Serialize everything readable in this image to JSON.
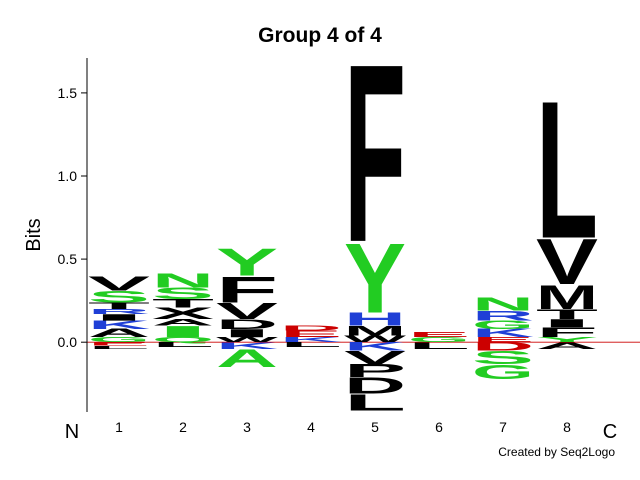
{
  "chart_data": {
    "type": "logo",
    "title": "Group 4 of 4",
    "y_label": "Bits",
    "n_label": "N",
    "c_label": "C",
    "credit": "Created by Seq2Logo",
    "ylim": [
      -0.42,
      1.71
    ],
    "yticks": [
      {
        "value": 0,
        "label": "0.0"
      },
      {
        "value": 0.5,
        "label": "0.5"
      },
      {
        "value": 1,
        "label": "1.0"
      },
      {
        "value": 1.5,
        "label": "1.5"
      }
    ],
    "categories": [
      "1",
      "2",
      "3",
      "4",
      "5",
      "6",
      "7",
      "8"
    ],
    "positions": [
      {
        "letters": [
          {
            "letter": "G",
            "value": 0.03,
            "color": "#22cc22"
          },
          {
            "letter": "A",
            "value": 0.05,
            "color": "#000000"
          },
          {
            "letter": "K",
            "value": 0.05,
            "color": "#1f3fd6"
          },
          {
            "letter": "I",
            "value": 0.04,
            "color": "#000000"
          },
          {
            "letter": "R",
            "value": 0.03,
            "color": "#1f3fd6"
          },
          {
            "letter": "T",
            "value": 0.04,
            "color": "#000000"
          },
          {
            "letter": "S",
            "value": 0.07,
            "color": "#22cc22"
          },
          {
            "letter": "V",
            "value": 0.09,
            "color": "#000000"
          },
          {
            "letter": "E",
            "value": -0.02,
            "color": "#cc0000"
          },
          {
            "letter": "L",
            "value": -0.02,
            "color": "#000000"
          }
        ]
      },
      {
        "letters": [
          {
            "letter": "Q",
            "value": 0.03,
            "color": "#22cc22"
          },
          {
            "letter": "I",
            "value": 0.07,
            "color": "#22cc22"
          },
          {
            "letter": "A",
            "value": 0.04,
            "color": "#000000"
          },
          {
            "letter": "X",
            "value": 0.07,
            "color": "#000000"
          },
          {
            "letter": "T",
            "value": 0.05,
            "color": "#000000"
          },
          {
            "letter": "S",
            "value": 0.07,
            "color": "#22cc22"
          },
          {
            "letter": "N",
            "value": 0.09,
            "color": "#22cc22"
          },
          {
            "letter": "L",
            "value": -0.03,
            "color": "#000000"
          }
        ]
      },
      {
        "letters": [
          {
            "letter": "W",
            "value": 0.03,
            "color": "#000000"
          },
          {
            "letter": "I",
            "value": 0.05,
            "color": "#000000"
          },
          {
            "letter": "D",
            "value": 0.06,
            "color": "#000000"
          },
          {
            "letter": "V",
            "value": 0.1,
            "color": "#000000"
          },
          {
            "letter": "F",
            "value": 0.16,
            "color": "#000000"
          },
          {
            "letter": "Y",
            "value": 0.17,
            "color": "#22cc22"
          },
          {
            "letter": "K",
            "value": -0.04,
            "color": "#1f3fd6"
          },
          {
            "letter": "A",
            "value": -0.11,
            "color": "#22cc22"
          }
        ]
      },
      {
        "letters": [
          {
            "letter": "K",
            "value": 0.03,
            "color": "#1f3fd6"
          },
          {
            "letter": "E",
            "value": 0.04,
            "color": "#cc0000"
          },
          {
            "letter": "D",
            "value": 0.03,
            "color": "#cc0000"
          },
          {
            "letter": "L",
            "value": -0.03,
            "color": "#000000"
          }
        ]
      },
      {
        "letters": [
          {
            "letter": "W",
            "value": 0.04,
            "color": "#000000"
          },
          {
            "letter": "M",
            "value": 0.06,
            "color": "#000000"
          },
          {
            "letter": "H",
            "value": 0.08,
            "color": "#1f3fd6"
          },
          {
            "letter": "Y",
            "value": 0.43,
            "color": "#22cc22"
          },
          {
            "letter": "F",
            "value": 1.1,
            "color": "#000000"
          },
          {
            "letter": "K",
            "value": -0.05,
            "color": "#1f3fd6"
          },
          {
            "letter": "V",
            "value": -0.08,
            "color": "#000000"
          },
          {
            "letter": "P",
            "value": -0.08,
            "color": "#000000"
          },
          {
            "letter": "D",
            "value": -0.1,
            "color": "#000000"
          },
          {
            "letter": "L",
            "value": -0.1,
            "color": "#000000"
          }
        ]
      },
      {
        "letters": [
          {
            "letter": "G",
            "value": 0.03,
            "color": "#22cc22"
          },
          {
            "letter": "E",
            "value": 0.03,
            "color": "#cc0000"
          },
          {
            "letter": "L",
            "value": -0.04,
            "color": "#000000"
          }
        ]
      },
      {
        "letters": [
          {
            "letter": "E",
            "value": 0.03,
            "color": "#cc0000"
          },
          {
            "letter": "K",
            "value": 0.05,
            "color": "#1f3fd6"
          },
          {
            "letter": "G",
            "value": 0.05,
            "color": "#22cc22"
          },
          {
            "letter": "R",
            "value": 0.06,
            "color": "#1f3fd6"
          },
          {
            "letter": "N",
            "value": 0.08,
            "color": "#22cc22"
          },
          {
            "letter": "D",
            "value": -0.05,
            "color": "#cc0000"
          },
          {
            "letter": "S",
            "value": -0.08,
            "color": "#22cc22"
          },
          {
            "letter": "G",
            "value": -0.09,
            "color": "#22cc22"
          }
        ]
      },
      {
        "letters": [
          {
            "letter": "Y",
            "value": 0.03,
            "color": "#22cc22"
          },
          {
            "letter": "F",
            "value": 0.06,
            "color": "#000000"
          },
          {
            "letter": "I",
            "value": 0.05,
            "color": "#000000"
          },
          {
            "letter": "T",
            "value": 0.06,
            "color": "#000000"
          },
          {
            "letter": "M",
            "value": 0.15,
            "color": "#000000"
          },
          {
            "letter": "V",
            "value": 0.28,
            "color": "#000000"
          },
          {
            "letter": "L",
            "value": 0.85,
            "color": "#000000"
          },
          {
            "letter": "A",
            "value": -0.04,
            "color": "#000000"
          }
        ]
      }
    ]
  }
}
